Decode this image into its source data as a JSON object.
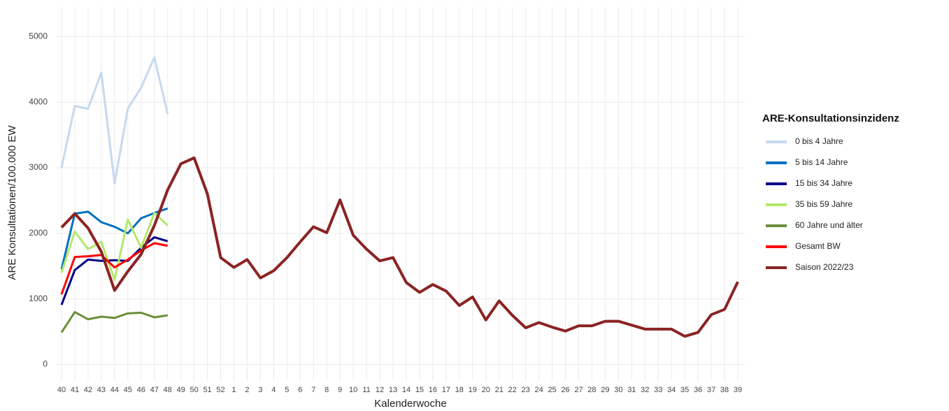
{
  "chart_data": {
    "type": "line",
    "x_label": "Kalenderwoche",
    "y_label": "ARE Konsultationen/100.000 EW",
    "legend_title": "ARE-Konsultationsinzidenz",
    "legend_position": "right",
    "grid": true,
    "categories": [
      "40",
      "41",
      "42",
      "43",
      "44",
      "45",
      "46",
      "47",
      "48",
      "49",
      "50",
      "51",
      "52",
      "1",
      "2",
      "3",
      "4",
      "5",
      "6",
      "7",
      "8",
      "9",
      "10",
      "11",
      "12",
      "13",
      "14",
      "15",
      "16",
      "17",
      "18",
      "19",
      "20",
      "21",
      "22",
      "23",
      "24",
      "25",
      "26",
      "27",
      "28",
      "29",
      "30",
      "31",
      "32",
      "33",
      "34",
      "35",
      "36",
      "37",
      "38",
      "39"
    ],
    "ylim": [
      -250,
      5450
    ],
    "yticks": [
      0,
      1000,
      2000,
      3000,
      4000,
      5000
    ],
    "series": [
      {
        "name": "0 bis 4 Jahre",
        "color": "#c6d9f0",
        "values": [
          3000,
          3940,
          3900,
          4450,
          2760,
          3900,
          4220,
          4680,
          3820,
          null,
          null,
          null,
          null,
          null,
          null,
          null,
          null,
          null,
          null,
          null,
          null,
          null,
          null,
          null,
          null,
          null,
          null,
          null,
          null,
          null,
          null,
          null,
          null,
          null,
          null,
          null,
          null,
          null,
          null,
          null,
          null,
          null,
          null,
          null,
          null,
          null,
          null,
          null,
          null,
          null,
          null,
          null
        ]
      },
      {
        "name": "5 bis 14 Jahre",
        "color": "#0070c0",
        "values": [
          1450,
          2300,
          2330,
          2170,
          2100,
          2000,
          2230,
          2310,
          2380,
          null,
          null,
          null,
          null,
          null,
          null,
          null,
          null,
          null,
          null,
          null,
          null,
          null,
          null,
          null,
          null,
          null,
          null,
          null,
          null,
          null,
          null,
          null,
          null,
          null,
          null,
          null,
          null,
          null,
          null,
          null,
          null,
          null,
          null,
          null,
          null,
          null,
          null,
          null,
          null,
          null,
          null,
          null
        ]
      },
      {
        "name": "15 bis 34 Jahre",
        "color": "#00008b",
        "values": [
          910,
          1440,
          1600,
          1580,
          1590,
          1580,
          1780,
          1940,
          1880,
          null,
          null,
          null,
          null,
          null,
          null,
          null,
          null,
          null,
          null,
          null,
          null,
          null,
          null,
          null,
          null,
          null,
          null,
          null,
          null,
          null,
          null,
          null,
          null,
          null,
          null,
          null,
          null,
          null,
          null,
          null,
          null,
          null,
          null,
          null,
          null,
          null,
          null,
          null,
          null,
          null,
          null,
          null
        ]
      },
      {
        "name": "35 bis 59 Jahre",
        "color": "#b3e86b",
        "values": [
          1400,
          2030,
          1760,
          1870,
          1290,
          2210,
          1780,
          2310,
          2120,
          null,
          null,
          null,
          null,
          null,
          null,
          null,
          null,
          null,
          null,
          null,
          null,
          null,
          null,
          null,
          null,
          null,
          null,
          null,
          null,
          null,
          null,
          null,
          null,
          null,
          null,
          null,
          null,
          null,
          null,
          null,
          null,
          null,
          null,
          null,
          null,
          null,
          null,
          null,
          null,
          null,
          null,
          null
        ]
      },
      {
        "name": "60 Jahre und älter",
        "color": "#6b8e3a",
        "values": [
          490,
          800,
          690,
          730,
          710,
          780,
          790,
          720,
          750,
          null,
          null,
          null,
          null,
          null,
          null,
          null,
          null,
          null,
          null,
          null,
          null,
          null,
          null,
          null,
          null,
          null,
          null,
          null,
          null,
          null,
          null,
          null,
          null,
          null,
          null,
          null,
          null,
          null,
          null,
          null,
          null,
          null,
          null,
          null,
          null,
          null,
          null,
          null,
          null,
          null,
          null,
          null
        ]
      },
      {
        "name": "Gesamt BW",
        "color": "#ff0000",
        "values": [
          1070,
          1640,
          1650,
          1670,
          1480,
          1600,
          1740,
          1850,
          1810,
          null,
          null,
          null,
          null,
          null,
          null,
          null,
          null,
          null,
          null,
          null,
          null,
          null,
          null,
          null,
          null,
          null,
          null,
          null,
          null,
          null,
          null,
          null,
          null,
          null,
          null,
          null,
          null,
          null,
          null,
          null,
          null,
          null,
          null,
          null,
          null,
          null,
          null,
          null,
          null,
          null,
          null,
          null
        ]
      },
      {
        "name": "Saison 2022/23",
        "color": "#8b2323",
        "values": [
          2090,
          2300,
          2080,
          1720,
          1130,
          1420,
          1680,
          2120,
          2660,
          3060,
          3150,
          2600,
          1630,
          1480,
          1600,
          1320,
          1430,
          1630,
          1870,
          2100,
          2010,
          2510,
          1970,
          1760,
          1580,
          1630,
          1250,
          1100,
          1220,
          1120,
          900,
          1030,
          680,
          970,
          750,
          560,
          640,
          570,
          510,
          590,
          590,
          660,
          660,
          600,
          540,
          540,
          540,
          430,
          490,
          760,
          840,
          1260
        ]
      }
    ]
  }
}
